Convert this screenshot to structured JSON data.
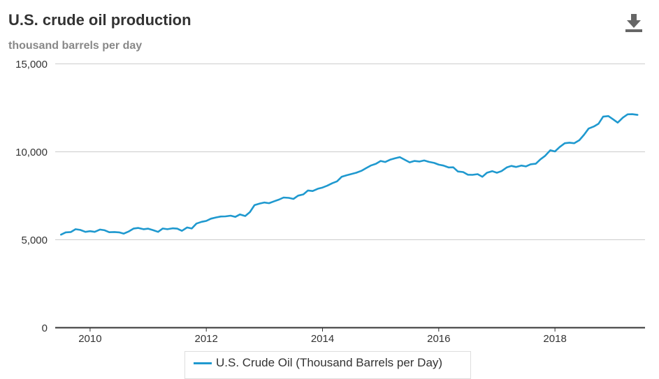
{
  "header": {
    "title": "U.S. crude oil production",
    "subtitle": "thousand barrels per day",
    "download_icon": "download-icon"
  },
  "colors": {
    "series": "#1f99cf",
    "grid": "#cccccc",
    "axis": "#333333",
    "title": "#333333",
    "subtitle": "#888888"
  },
  "chart_data": {
    "type": "line",
    "title": "U.S. crude oil production",
    "subtitle": "thousand barrels per day",
    "xlabel": "",
    "ylabel": "",
    "xlim": [
      2009.4,
      2019.55
    ],
    "ylim": [
      0,
      15000
    ],
    "yticks": [
      0,
      5000,
      10000,
      15000
    ],
    "ytick_labels": [
      "0",
      "5,000",
      "10,000",
      "15,000"
    ],
    "xticks": [
      2010,
      2012,
      2014,
      2016,
      2018
    ],
    "xtick_labels": [
      "2010",
      "2012",
      "2014",
      "2016",
      "2018"
    ],
    "grid": true,
    "legend_position": "bottom-center",
    "series": [
      {
        "name": "U.S. Crude Oil (Thousand Barrels per Day)",
        "x": [
          2009.5,
          2009.58,
          2009.67,
          2009.75,
          2009.83,
          2009.92,
          2010.0,
          2010.08,
          2010.17,
          2010.25,
          2010.33,
          2010.42,
          2010.5,
          2010.58,
          2010.67,
          2010.75,
          2010.83,
          2010.92,
          2011.0,
          2011.08,
          2011.17,
          2011.25,
          2011.33,
          2011.42,
          2011.5,
          2011.58,
          2011.67,
          2011.75,
          2011.83,
          2011.92,
          2012.0,
          2012.08,
          2012.17,
          2012.25,
          2012.33,
          2012.42,
          2012.5,
          2012.58,
          2012.67,
          2012.75,
          2012.83,
          2012.92,
          2013.0,
          2013.08,
          2013.17,
          2013.25,
          2013.33,
          2013.42,
          2013.5,
          2013.58,
          2013.67,
          2013.75,
          2013.83,
          2013.92,
          2014.0,
          2014.08,
          2014.17,
          2014.25,
          2014.33,
          2014.42,
          2014.5,
          2014.58,
          2014.67,
          2014.75,
          2014.83,
          2014.92,
          2015.0,
          2015.08,
          2015.17,
          2015.25,
          2015.33,
          2015.42,
          2015.5,
          2015.58,
          2015.67,
          2015.75,
          2015.83,
          2015.92,
          2016.0,
          2016.08,
          2016.17,
          2016.25,
          2016.33,
          2016.42,
          2016.5,
          2016.58,
          2016.67,
          2016.75,
          2016.83,
          2016.92,
          2017.0,
          2017.08,
          2017.17,
          2017.25,
          2017.33,
          2017.42,
          2017.5,
          2017.58,
          2017.67,
          2017.75,
          2017.83,
          2017.92,
          2018.0,
          2018.08,
          2018.17,
          2018.25,
          2018.33,
          2018.42,
          2018.5,
          2018.58,
          2018.67,
          2018.75,
          2018.83,
          2018.92,
          2019.0,
          2019.08,
          2019.17,
          2019.25,
          2019.33,
          2019.42
        ],
        "values": [
          5270,
          5400,
          5420,
          5580,
          5540,
          5430,
          5470,
          5430,
          5560,
          5520,
          5410,
          5420,
          5400,
          5330,
          5460,
          5620,
          5650,
          5580,
          5610,
          5530,
          5430,
          5620,
          5580,
          5630,
          5610,
          5490,
          5680,
          5620,
          5900,
          6000,
          6050,
          6180,
          6250,
          6300,
          6310,
          6350,
          6280,
          6420,
          6330,
          6550,
          6950,
          7040,
          7100,
          7060,
          7170,
          7260,
          7380,
          7360,
          7300,
          7490,
          7560,
          7780,
          7750,
          7880,
          7950,
          8050,
          8200,
          8300,
          8560,
          8650,
          8720,
          8790,
          8900,
          9050,
          9200,
          9300,
          9460,
          9400,
          9540,
          9610,
          9680,
          9520,
          9380,
          9460,
          9430,
          9490,
          9410,
          9350,
          9250,
          9200,
          9090,
          9100,
          8860,
          8830,
          8680,
          8670,
          8710,
          8560,
          8790,
          8880,
          8790,
          8880,
          9090,
          9180,
          9120,
          9200,
          9150,
          9270,
          9300,
          9550,
          9750,
          10070,
          10000,
          10250,
          10470,
          10500,
          10470,
          10640,
          10950,
          11300,
          11420,
          11580,
          11980,
          12010,
          11830,
          11640,
          11930,
          12110,
          12120,
          12080
        ]
      }
    ]
  }
}
